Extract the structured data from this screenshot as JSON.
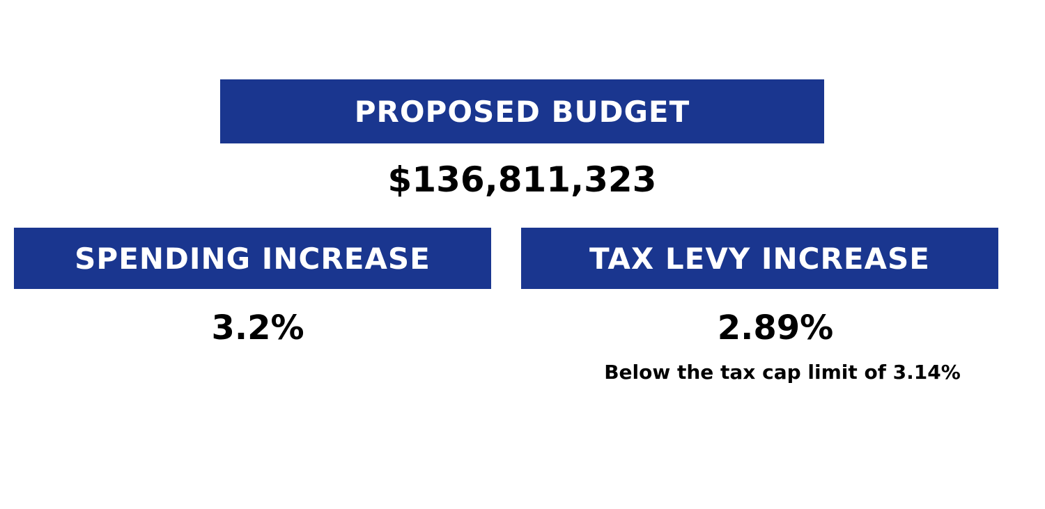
{
  "budget": {
    "label": "PROPOSED BUDGET",
    "value": "$136,811,323"
  },
  "spending": {
    "label": "SPENDING INCREASE",
    "value": "3.2%"
  },
  "tax_levy": {
    "label": "TAX LEVY INCREASE",
    "value": "2.89%",
    "note": "Below the tax cap limit of 3.14%"
  },
  "colors": {
    "banner_background": "#1a368f",
    "banner_text": "#ffffff",
    "value_text": "#000000"
  }
}
